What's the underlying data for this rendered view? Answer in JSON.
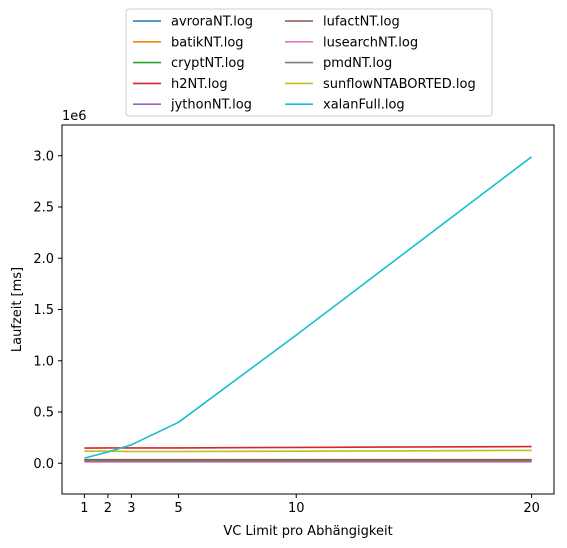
{
  "chart_data": {
    "type": "line",
    "xlabel": "VC Limit pro Abhängigkeit",
    "ylabel": "Laufzeit [ms]",
    "y_offset_text": "1e6",
    "xlim": [
      0.05,
      20.95
    ],
    "ylim": [
      -300000,
      3300000
    ],
    "x_ticks": [
      1,
      2,
      3,
      5,
      10,
      20
    ],
    "y_ticks": [
      0,
      500000,
      1000000,
      1500000,
      2000000,
      2500000,
      3000000
    ],
    "y_tick_labels": [
      "0.0",
      "0.5",
      "1.0",
      "1.5",
      "2.0",
      "2.5",
      "3.0"
    ],
    "legend_position": "upper center, outside above plot, 2 columns",
    "x": [
      1,
      2,
      3,
      5,
      10,
      20
    ],
    "series": [
      {
        "name": "avroraNT.log",
        "color": "#1f77b4",
        "values": [
          28000,
          28000,
          28000,
          28000,
          28000,
          28000
        ]
      },
      {
        "name": "batikNT.log",
        "color": "#ff7f0e",
        "values": [
          22000,
          22000,
          22000,
          22000,
          22000,
          22000
        ]
      },
      {
        "name": "cryptNT.log",
        "color": "#2ca02c",
        "values": [
          25000,
          25000,
          25000,
          25000,
          25000,
          25000
        ]
      },
      {
        "name": "h2NT.log",
        "color": "#d62728",
        "values": [
          148000,
          150000,
          150000,
          150000,
          155000,
          162000
        ]
      },
      {
        "name": "jythonNT.log",
        "color": "#9467bd",
        "values": [
          30000,
          30000,
          30000,
          30000,
          30000,
          30000
        ]
      },
      {
        "name": "lufactNT.log",
        "color": "#8c564b",
        "values": [
          35000,
          35000,
          35000,
          35000,
          35000,
          35000
        ]
      },
      {
        "name": "lusearchNT.log",
        "color": "#e377c2",
        "values": [
          12000,
          12000,
          12000,
          12000,
          12000,
          12000
        ]
      },
      {
        "name": "pmdNT.log",
        "color": "#7f7f7f",
        "values": [
          20000,
          20000,
          20000,
          20000,
          20000,
          20000
        ]
      },
      {
        "name": "sunflowNTABORTED.log",
        "color": "#bcbd22",
        "values": [
          118000,
          118000,
          115000,
          115000,
          118000,
          125000
        ]
      },
      {
        "name": "xalanFull.log",
        "color": "#17becf",
        "values": [
          50000,
          110000,
          180000,
          400000,
          1250000,
          2990000
        ]
      }
    ]
  }
}
